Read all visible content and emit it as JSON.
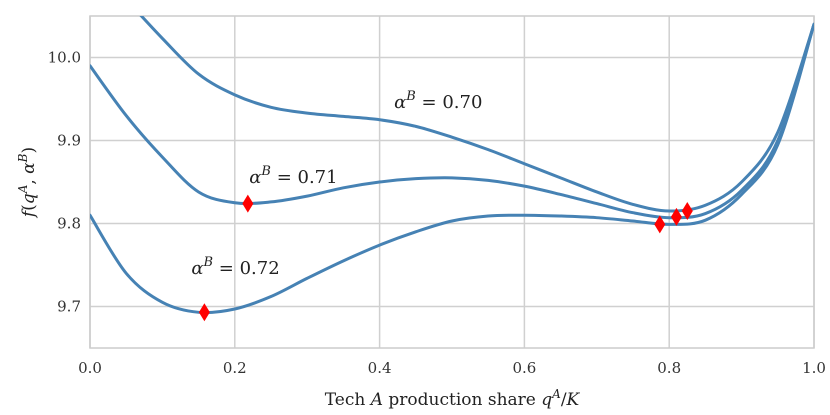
{
  "chart_data": {
    "type": "line",
    "xlabel": "Tech A production share q^A/K",
    "ylabel": "f(q^A, α^B)",
    "xlim": [
      0.0,
      1.0
    ],
    "ylim": [
      9.65,
      10.05
    ],
    "grid": true,
    "x_ticks": [
      "0.0",
      "0.2",
      "0.4",
      "0.6",
      "0.8",
      "1.0"
    ],
    "y_ticks": [
      "9.7",
      "9.8",
      "9.9",
      "10.0"
    ],
    "line_color": "#4682b4",
    "marker_color": "#ff0000",
    "series": [
      {
        "name": "α^B = 0.70",
        "x": [
          0.05,
          0.1,
          0.15,
          0.2,
          0.25,
          0.3,
          0.35,
          0.4,
          0.45,
          0.5,
          0.55,
          0.6,
          0.65,
          0.7,
          0.75,
          0.8,
          0.85,
          0.9,
          0.95,
          1.0
        ],
        "y": [
          10.07,
          10.023,
          9.98,
          9.955,
          9.94,
          9.933,
          9.929,
          9.925,
          9.917,
          9.904,
          9.889,
          9.872,
          9.855,
          9.838,
          9.823,
          9.815,
          9.822,
          9.85,
          9.91,
          10.04
        ],
        "markers": [
          {
            "x": 0.825,
            "y": 9.815
          }
        ]
      },
      {
        "name": "α^B = 0.71",
        "x": [
          0.0,
          0.05,
          0.1,
          0.15,
          0.2,
          0.25,
          0.3,
          0.35,
          0.4,
          0.45,
          0.5,
          0.55,
          0.6,
          0.65,
          0.7,
          0.75,
          0.8,
          0.85,
          0.9,
          0.95,
          1.0
        ],
        "y": [
          9.99,
          9.93,
          9.88,
          9.838,
          9.825,
          9.826,
          9.833,
          9.843,
          9.85,
          9.854,
          9.855,
          9.852,
          9.845,
          9.835,
          9.824,
          9.813,
          9.807,
          9.812,
          9.84,
          9.9,
          10.04
        ],
        "markers": [
          {
            "x": 0.218,
            "y": 9.824
          },
          {
            "x": 0.81,
            "y": 9.808
          }
        ]
      },
      {
        "name": "α^B = 0.72",
        "x": [
          0.0,
          0.05,
          0.1,
          0.15,
          0.2,
          0.25,
          0.3,
          0.35,
          0.4,
          0.45,
          0.5,
          0.55,
          0.6,
          0.65,
          0.7,
          0.75,
          0.8,
          0.85,
          0.9,
          0.95,
          1.0
        ],
        "y": [
          9.81,
          9.74,
          9.705,
          9.693,
          9.697,
          9.712,
          9.734,
          9.755,
          9.774,
          9.79,
          9.803,
          9.809,
          9.81,
          9.809,
          9.807,
          9.803,
          9.799,
          9.804,
          9.835,
          9.895,
          10.04
        ],
        "markers": [
          {
            "x": 0.158,
            "y": 9.693
          },
          {
            "x": 0.787,
            "y": 9.799
          }
        ]
      }
    ],
    "annotations": [
      {
        "greek": "α",
        "sup": "B",
        "text": " = 0.70",
        "x": 0.42,
        "y": 9.939
      },
      {
        "greek": "α",
        "sup": "B",
        "text": " = 0.71",
        "x": 0.22,
        "y": 9.849
      },
      {
        "greek": "α",
        "sup": "B",
        "text": " = 0.72",
        "x": 0.14,
        "y": 9.739
      }
    ]
  }
}
